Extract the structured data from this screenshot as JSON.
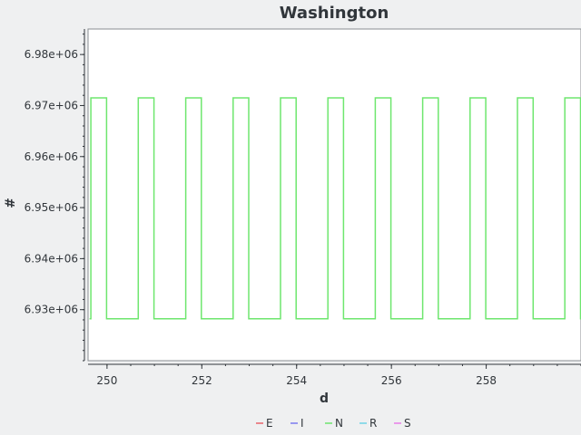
{
  "chart_data": {
    "type": "line",
    "title": "Washington",
    "xlabel": "d",
    "ylabel": "#",
    "xlim": [
      249.6,
      260.0
    ],
    "ylim": [
      6920000,
      6985000
    ],
    "x_ticks": [
      250,
      252,
      254,
      256,
      258
    ],
    "x_tick_labels": [
      "250",
      "252",
      "254",
      "256",
      "258"
    ],
    "y_ticks": [
      6930000,
      6940000,
      6950000,
      6960000,
      6970000,
      6980000
    ],
    "y_tick_labels": [
      "6.93e+06",
      "6.94e+06",
      "6.95e+06",
      "6.96e+06",
      "6.97e+06",
      "6.98e+06"
    ],
    "grid": false,
    "legend_position": "bottom",
    "series": [
      {
        "name": "E",
        "color": "#e8636b",
        "points": []
      },
      {
        "name": "I",
        "color": "#7b7bf0",
        "points": []
      },
      {
        "name": "N",
        "color": "#6ee66e",
        "points": [
          [
            249.63,
            6928200
          ],
          [
            249.66,
            6928200
          ],
          [
            249.66,
            6971500
          ],
          [
            249.99,
            6971500
          ],
          [
            249.99,
            6928200
          ],
          [
            250.66,
            6928200
          ],
          [
            250.66,
            6971500
          ],
          [
            250.99,
            6971500
          ],
          [
            250.99,
            6928200
          ],
          [
            251.66,
            6928200
          ],
          [
            251.66,
            6971500
          ],
          [
            251.99,
            6971500
          ],
          [
            251.99,
            6928200
          ],
          [
            252.66,
            6928200
          ],
          [
            252.66,
            6971500
          ],
          [
            252.99,
            6971500
          ],
          [
            252.99,
            6928200
          ],
          [
            253.66,
            6928200
          ],
          [
            253.66,
            6971500
          ],
          [
            253.99,
            6971500
          ],
          [
            253.99,
            6928200
          ],
          [
            254.66,
            6928200
          ],
          [
            254.66,
            6971500
          ],
          [
            254.99,
            6971500
          ],
          [
            254.99,
            6928200
          ],
          [
            255.66,
            6928200
          ],
          [
            255.66,
            6971500
          ],
          [
            255.99,
            6971500
          ],
          [
            255.99,
            6928200
          ],
          [
            256.66,
            6928200
          ],
          [
            256.66,
            6971500
          ],
          [
            256.99,
            6971500
          ],
          [
            256.99,
            6928200
          ],
          [
            257.66,
            6928200
          ],
          [
            257.66,
            6971500
          ],
          [
            257.99,
            6971500
          ],
          [
            257.99,
            6928200
          ],
          [
            258.66,
            6928200
          ],
          [
            258.66,
            6971500
          ],
          [
            258.99,
            6971500
          ],
          [
            258.99,
            6928200
          ],
          [
            259.66,
            6928200
          ],
          [
            259.66,
            6971500
          ],
          [
            259.99,
            6971500
          ],
          [
            259.99,
            6928200
          ],
          [
            260.0,
            6928200
          ]
        ]
      },
      {
        "name": "R",
        "color": "#6fd3e6",
        "points": []
      },
      {
        "name": "S",
        "color": "#e87de8",
        "points": []
      }
    ]
  }
}
